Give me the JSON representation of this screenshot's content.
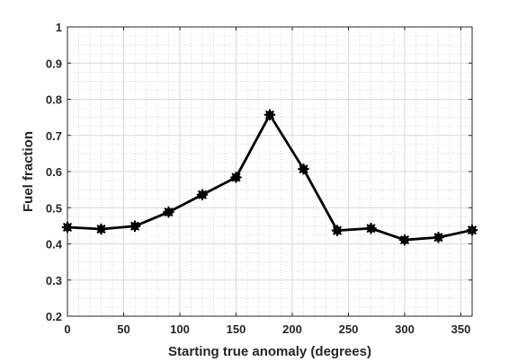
{
  "chart_data": {
    "type": "line",
    "title": "",
    "xlabel": "Starting true anomaly (degrees)",
    "ylabel": "Fuel fraction",
    "xlim": [
      0,
      360
    ],
    "ylim": [
      0.2,
      1
    ],
    "xticks": [
      0,
      50,
      100,
      150,
      200,
      250,
      300,
      350
    ],
    "yticks": [
      0.2,
      0.3,
      0.4,
      0.5,
      0.6,
      0.7,
      0.8,
      0.9,
      1
    ],
    "ytick_labels": [
      "0.2",
      "0.3",
      "0.4",
      "0.5",
      "0.6",
      "0.7",
      "0.8",
      "0.9",
      "1"
    ],
    "grid": "major and minor",
    "series": [
      {
        "color": "#000000",
        "marker": "star",
        "x": [
          0,
          30,
          60,
          90,
          120,
          150,
          180,
          210,
          240,
          270,
          300,
          330,
          360
        ],
        "y": [
          0.446,
          0.441,
          0.449,
          0.488,
          0.536,
          0.584,
          0.757,
          0.607,
          0.437,
          0.443,
          0.411,
          0.418,
          0.438
        ]
      }
    ]
  }
}
